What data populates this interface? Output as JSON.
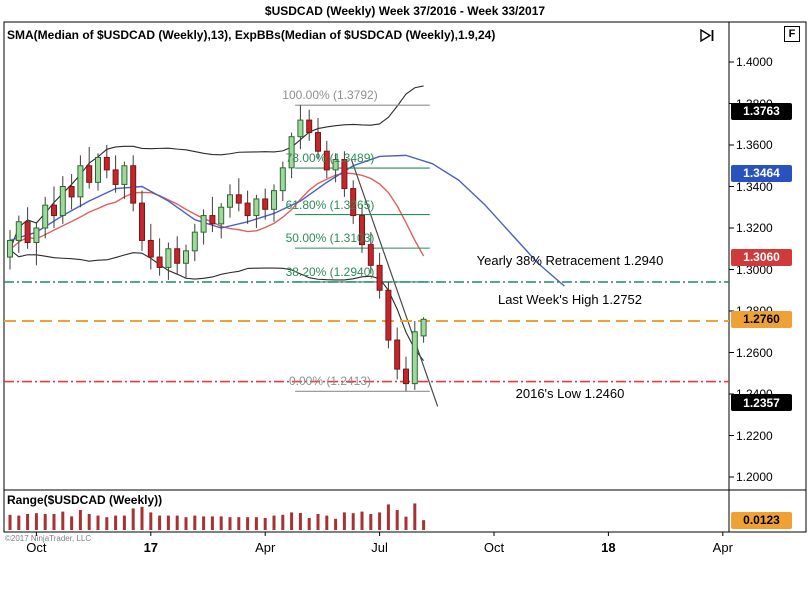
{
  "title_bar": {
    "title": "$USDCAD (Weekly)  Week 37/2016 - Week 33/2017"
  },
  "toolbar_icons": {
    "playback": "skip-to-last-bar",
    "fixed_scale_label": "F"
  },
  "indicators_label": "SMA(Median of $USDCAD (Weekly),13), ExpBBs(Median of $USDCAD (Weekly),1.9,24)",
  "range_panel": {
    "label": "Range($USDCAD (Weekly))",
    "last_value": "0.0123",
    "bar_color": "#a83232",
    "badge_bg": "#efa135",
    "badge_fg": "#000000"
  },
  "copyright": "©2017 NinjaTrader, LLC",
  "price_axis": {
    "ticks": [
      "1.4000",
      "1.3800",
      "1.3600",
      "1.3400",
      "1.3200",
      "1.3000",
      "1.2800",
      "1.2600",
      "1.2400",
      "1.2200",
      "1.2000"
    ],
    "badges": [
      {
        "value": "1.3763",
        "bg": "#000000",
        "fg": "#ffffff"
      },
      {
        "value": "1.3464",
        "bg": "#2a52be",
        "fg": "#ffffff"
      },
      {
        "value": "1.3060",
        "bg": "#cf3a3a",
        "fg": "#ffffff"
      },
      {
        "value": "1.2760",
        "bg": "#efa135",
        "fg": "#000000"
      },
      {
        "value": "1.2357",
        "bg": "#000000",
        "fg": "#ffffff"
      }
    ]
  },
  "time_axis": {
    "labels": [
      {
        "text": "Oct",
        "week": 3,
        "year": false
      },
      {
        "text": "17",
        "week": 16,
        "year": true
      },
      {
        "text": "Apr",
        "week": 29,
        "year": false
      },
      {
        "text": "Jul",
        "week": 42,
        "year": false
      },
      {
        "text": "Oct",
        "week": 55,
        "year": false
      },
      {
        "text": "18",
        "week": 68,
        "year": true
      },
      {
        "text": "Apr",
        "week": 81,
        "year": false
      }
    ]
  },
  "fib_retracement": {
    "start_week": 32.4,
    "end_week": 47.7,
    "levels": [
      {
        "label": "100.00% (1.3792)",
        "price": 1.3792,
        "color": "#8f8f8f"
      },
      {
        "label": "78.00% (1.3489)",
        "price": 1.3489,
        "color": "#2e8b57"
      },
      {
        "label": "61.80% (1.3265)",
        "price": 1.3265,
        "color": "#2e8b57"
      },
      {
        "label": "50.00% (1.3103)",
        "price": 1.3103,
        "color": "#2e8b57"
      },
      {
        "label": "38.20% (1.2940)",
        "price": 1.294,
        "color": "#2e8b57"
      },
      {
        "label": "0.00% (1.2413)",
        "price": 1.2413,
        "color": "#8f8f8f"
      }
    ]
  },
  "horizontal_lines": [
    {
      "text": "Yearly 38% Retracement 1.2940",
      "price": 1.294,
      "color": "#1d8a6d",
      "dash": "10 3 2 3",
      "width": 1.5,
      "label_side": "above"
    },
    {
      "text": "Last Week's High 1.2752",
      "price": 1.2752,
      "color": "#efa135",
      "dash": "12 6",
      "width": 2,
      "label_side": "above"
    },
    {
      "text": "2016's Low 1.2460",
      "price": 1.246,
      "color": "#e83b3b",
      "dash": "10 3 2 3",
      "width": 1.6,
      "label_side": "below"
    }
  ],
  "chart_data": {
    "type": "candlestick",
    "symbol": "$USDCAD",
    "interval": "Weekly",
    "period": "Week 37/2016 - Week 33/2017",
    "title": "$USDCAD (Weekly)",
    "y_axis_range": [
      1.194,
      1.418
    ],
    "weeks_per_x_tick": 13,
    "up_color": "#9fd89f",
    "up_border": "#2d6a2d",
    "down_color": "#c3272e",
    "down_border": "#7d1414",
    "wick_color": "#3c3c3c",
    "ohlc": [
      [
        1.306,
        1.319,
        1.3,
        1.314
      ],
      [
        1.314,
        1.326,
        1.308,
        1.323
      ],
      [
        1.323,
        1.33,
        1.31,
        1.313
      ],
      [
        1.313,
        1.323,
        1.302,
        1.32
      ],
      [
        1.32,
        1.335,
        1.315,
        1.331
      ],
      [
        1.331,
        1.34,
        1.32,
        1.326
      ],
      [
        1.326,
        1.345,
        1.322,
        1.34
      ],
      [
        1.34,
        1.346,
        1.329,
        1.335
      ],
      [
        1.335,
        1.355,
        1.33,
        1.35
      ],
      [
        1.35,
        1.359,
        1.339,
        1.342
      ],
      [
        1.342,
        1.356,
        1.338,
        1.354
      ],
      [
        1.354,
        1.36,
        1.344,
        1.348
      ],
      [
        1.348,
        1.355,
        1.337,
        1.341
      ],
      [
        1.341,
        1.352,
        1.334,
        1.35
      ],
      [
        1.35,
        1.355,
        1.328,
        1.332
      ],
      [
        1.332,
        1.338,
        1.309,
        1.314
      ],
      [
        1.314,
        1.322,
        1.3,
        1.306
      ],
      [
        1.306,
        1.315,
        1.297,
        1.301
      ],
      [
        1.301,
        1.313,
        1.295,
        1.31
      ],
      [
        1.31,
        1.316,
        1.298,
        1.303
      ],
      [
        1.303,
        1.312,
        1.296,
        1.309
      ],
      [
        1.309,
        1.322,
        1.304,
        1.318
      ],
      [
        1.318,
        1.329,
        1.312,
        1.326
      ],
      [
        1.326,
        1.335,
        1.318,
        1.322
      ],
      [
        1.322,
        1.332,
        1.315,
        1.33
      ],
      [
        1.33,
        1.341,
        1.325,
        1.336
      ],
      [
        1.336,
        1.344,
        1.328,
        1.332
      ],
      [
        1.332,
        1.338,
        1.322,
        1.326
      ],
      [
        1.326,
        1.336,
        1.32,
        1.334
      ],
      [
        1.334,
        1.339,
        1.324,
        1.329
      ],
      [
        1.329,
        1.341,
        1.323,
        1.338
      ],
      [
        1.338,
        1.352,
        1.333,
        1.349
      ],
      [
        1.349,
        1.366,
        1.344,
        1.364
      ],
      [
        1.364,
        1.3792,
        1.358,
        1.372
      ],
      [
        1.372,
        1.377,
        1.362,
        1.366
      ],
      [
        1.366,
        1.373,
        1.353,
        1.357
      ],
      [
        1.357,
        1.362,
        1.344,
        1.348
      ],
      [
        1.348,
        1.356,
        1.342,
        1.353
      ],
      [
        1.353,
        1.357,
        1.335,
        1.339
      ],
      [
        1.339,
        1.343,
        1.322,
        1.326
      ],
      [
        1.326,
        1.331,
        1.308,
        1.312
      ],
      [
        1.312,
        1.318,
        1.298,
        1.302
      ],
      [
        1.302,
        1.308,
        1.286,
        1.29
      ],
      [
        1.29,
        1.294,
        1.262,
        1.266
      ],
      [
        1.266,
        1.272,
        1.247,
        1.252
      ],
      [
        1.252,
        1.258,
        1.2413,
        1.245
      ],
      [
        1.245,
        1.2752,
        1.242,
        1.27
      ],
      [
        1.268,
        1.277,
        1.2647,
        1.276
      ]
    ],
    "overlays": {
      "sma": {
        "name": "SMA(Median,13)",
        "color": "#e06060",
        "period": 13
      },
      "expbb": {
        "name": "ExpBBs(Median,1.9,24)",
        "color": "#2b2b2b",
        "mult": 1.9,
        "period": 24
      },
      "blue_line": {
        "color": "#4a5fc0",
        "points": [
          [
            0,
            1.314
          ],
          [
            3,
            1.318
          ],
          [
            6,
            1.326
          ],
          [
            9,
            1.333
          ],
          [
            12,
            1.339
          ],
          [
            15,
            1.34
          ],
          [
            18,
            1.333
          ],
          [
            21,
            1.324
          ],
          [
            24,
            1.32
          ],
          [
            27,
            1.323
          ],
          [
            30,
            1.327
          ],
          [
            33,
            1.333
          ],
          [
            36,
            1.342
          ],
          [
            39,
            1.35
          ],
          [
            42,
            1.3545
          ],
          [
            45,
            1.355
          ],
          [
            48,
            1.351
          ],
          [
            51,
            1.343
          ],
          [
            54,
            1.331
          ],
          [
            57,
            1.317
          ],
          [
            60,
            1.303
          ],
          [
            63,
            1.292
          ]
        ]
      },
      "trend_line": {
        "color": "#4a4a4a",
        "points": [
          [
            38.8,
            1.353
          ],
          [
            48.6,
            1.234
          ]
        ]
      }
    },
    "range_series_note": "lower panel shows weekly high-low range; last value 0.0123"
  }
}
